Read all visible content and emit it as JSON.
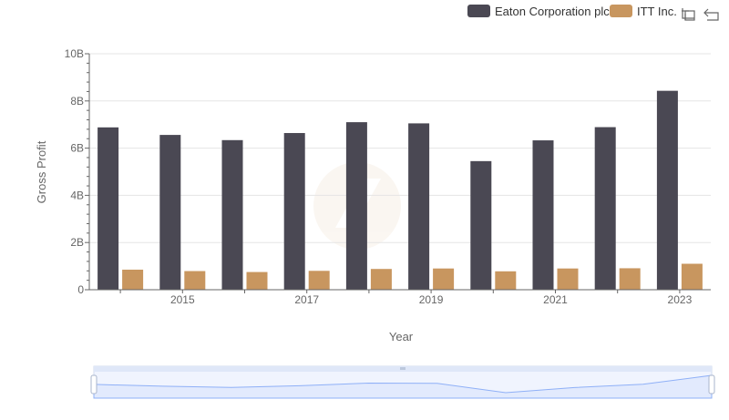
{
  "colors": {
    "series_a": "#4a4853",
    "series_b": "#c8965f",
    "axis": "#666666",
    "grid": "#e5e5e5",
    "zoom_fill": "#d4e0fb",
    "zoom_line": "#8fb0f7"
  },
  "toolbar": {
    "zoom_icon": "zoom-area-icon",
    "restore_icon": "restore-icon"
  },
  "chart_data": {
    "type": "bar",
    "xlabel": "Year",
    "ylabel": "Gross Profit",
    "ylim": [
      0,
      10000000000
    ],
    "y_ticks": [
      {
        "value": 0,
        "label": "0"
      },
      {
        "value": 2000000000,
        "label": "2B"
      },
      {
        "value": 4000000000,
        "label": "4B"
      },
      {
        "value": 6000000000,
        "label": "6B"
      },
      {
        "value": 8000000000,
        "label": "8B"
      },
      {
        "value": 10000000000,
        "label": "10B"
      }
    ],
    "categories": [
      "2014",
      "2015",
      "2016",
      "2017",
      "2018",
      "2019",
      "2020",
      "2021",
      "2022",
      "2023"
    ],
    "x_tick_labels": [
      "2015",
      "2017",
      "2019",
      "2021",
      "2023"
    ],
    "legend_position": "top-right",
    "grid": true,
    "series": [
      {
        "name": "Eaton Corporation plc",
        "values": [
          6880000000,
          6560000000,
          6340000000,
          6640000000,
          7100000000,
          7050000000,
          5450000000,
          6330000000,
          6890000000,
          8430000000
        ]
      },
      {
        "name": "ITT Inc.",
        "values": [
          850000000,
          790000000,
          750000000,
          800000000,
          880000000,
          900000000,
          780000000,
          900000000,
          910000000,
          1100000000
        ]
      }
    ]
  }
}
